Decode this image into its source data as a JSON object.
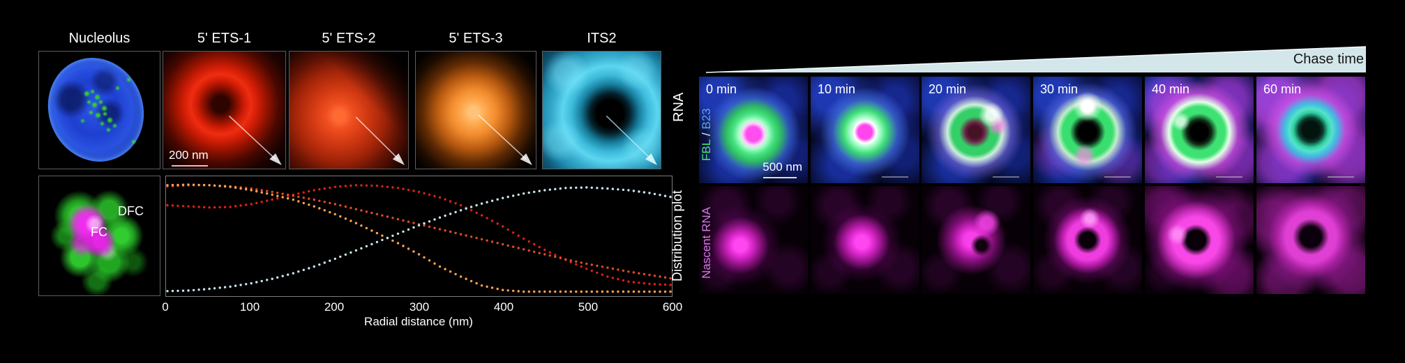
{
  "left": {
    "columns": [
      "Nucleolus",
      "5' ETS-1",
      "5' ETS-2",
      "5' ETS-3",
      "ITS2"
    ],
    "row1_side_label": "RNA",
    "row2_side_label": "Distribution plot",
    "scale_bar_label": "200 nm",
    "dfc_label": "DFC",
    "fc_label": "FC"
  },
  "chart_data": {
    "type": "scatter",
    "title": "",
    "xlabel": "Radial distance (nm)",
    "ylabel": "Distribution plot",
    "xlim": [
      0,
      600
    ],
    "xticks": [
      "0",
      "100",
      "200",
      "300",
      "400",
      "500",
      "600"
    ],
    "x_step": 25,
    "x_max": 600,
    "grid": false,
    "legend_position": "none",
    "series": [
      {
        "name": "5' ETS-1",
        "color": "#dd2214",
        "values": [
          0.79,
          0.78,
          0.77,
          0.775,
          0.8,
          0.84,
          0.885,
          0.925,
          0.955,
          0.97,
          0.965,
          0.945,
          0.91,
          0.86,
          0.79,
          0.7,
          0.6,
          0.49,
          0.39,
          0.3,
          0.22,
          0.15,
          0.105,
          0.085,
          0.075
        ]
      },
      {
        "name": "5' ETS-2",
        "color": "#e04b26",
        "values": [
          0.96,
          0.97,
          0.97,
          0.96,
          0.94,
          0.91,
          0.875,
          0.84,
          0.8,
          0.755,
          0.71,
          0.665,
          0.62,
          0.575,
          0.53,
          0.485,
          0.44,
          0.395,
          0.35,
          0.305,
          0.265,
          0.23,
          0.195,
          0.165,
          0.135
        ]
      },
      {
        "name": "5' ETS-3",
        "color": "#ffa44c",
        "values": [
          0.97,
          0.975,
          0.97,
          0.955,
          0.925,
          0.885,
          0.84,
          0.78,
          0.71,
          0.63,
          0.54,
          0.45,
          0.35,
          0.24,
          0.15,
          0.07,
          0.03,
          0.015,
          0.015,
          0.015,
          0.015,
          0.015,
          0.015,
          0.015,
          0.015
        ]
      },
      {
        "name": "ITS2",
        "color": "#c8e4f0",
        "values": [
          0.02,
          0.025,
          0.04,
          0.06,
          0.09,
          0.13,
          0.18,
          0.24,
          0.31,
          0.385,
          0.46,
          0.535,
          0.61,
          0.68,
          0.745,
          0.805,
          0.855,
          0.895,
          0.925,
          0.945,
          0.95,
          0.94,
          0.925,
          0.9,
          0.865
        ]
      }
    ]
  },
  "right": {
    "chase_label": "Chase time",
    "times": [
      "0 min",
      "10 min",
      "20 min",
      "30 min",
      "40 min",
      "60 min"
    ],
    "row1_side_label_parts": {
      "fbl": "FBL",
      "sep": " / ",
      "b23": "B23"
    },
    "row2_side_label": "Nascent RNA",
    "scale_bar_label": "500 nm"
  },
  "colors": {
    "ets1_curve": "#dd2214",
    "ets2_curve": "#e04b26",
    "ets3_curve": "#ffa44c",
    "its2_curve": "#c8e4f0",
    "fbl_label": "#52de78",
    "b23_label": "#58a8e0",
    "nascent_label": "#d678e6",
    "chase_band": "#d3e7ea",
    "chase_text": "#151515"
  }
}
